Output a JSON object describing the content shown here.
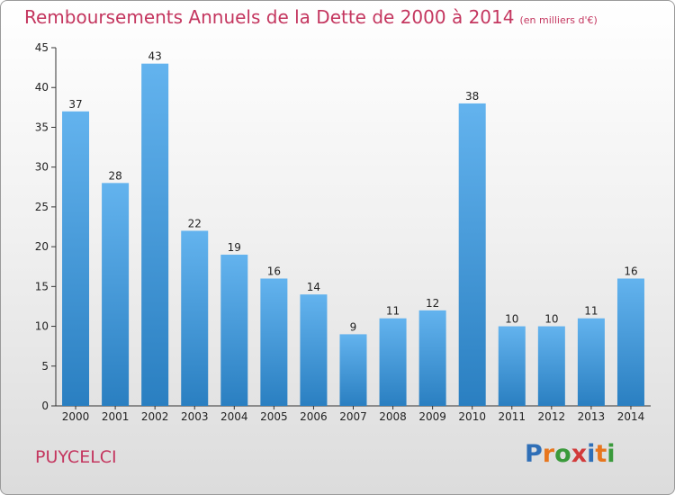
{
  "title": "Remboursements Annuels de la Dette de 2000 à 2014",
  "subtitle": "(en milliers d'€)",
  "commune": "PUYCELCI",
  "logo": {
    "text": "Proxiti",
    "letter_colors": [
      "#2f6fb7",
      "#e7761e",
      "#3a9a3b",
      "#d23a3a",
      "#2f6fb7",
      "#e7761e",
      "#3a9a3b"
    ]
  },
  "colors": {
    "bar_light": "#63b3ee",
    "bar_dark": "#2a7fc1",
    "title": "#c4365f"
  },
  "chart_data": {
    "type": "bar",
    "title": "Remboursements Annuels de la Dette de 2000 à 2014",
    "subtitle": "(en milliers d'€)",
    "categories": [
      "2000",
      "2001",
      "2002",
      "2003",
      "2004",
      "2005",
      "2006",
      "2007",
      "2008",
      "2009",
      "2010",
      "2011",
      "2012",
      "2013",
      "2014"
    ],
    "values": [
      37,
      28,
      43,
      22,
      19,
      16,
      14,
      9,
      11,
      12,
      38,
      10,
      10,
      11,
      16
    ],
    "ylim": [
      0,
      45
    ],
    "yticks": [
      0,
      5,
      10,
      15,
      20,
      25,
      30,
      35,
      40,
      45
    ],
    "grid": false,
    "data_labels": true
  }
}
